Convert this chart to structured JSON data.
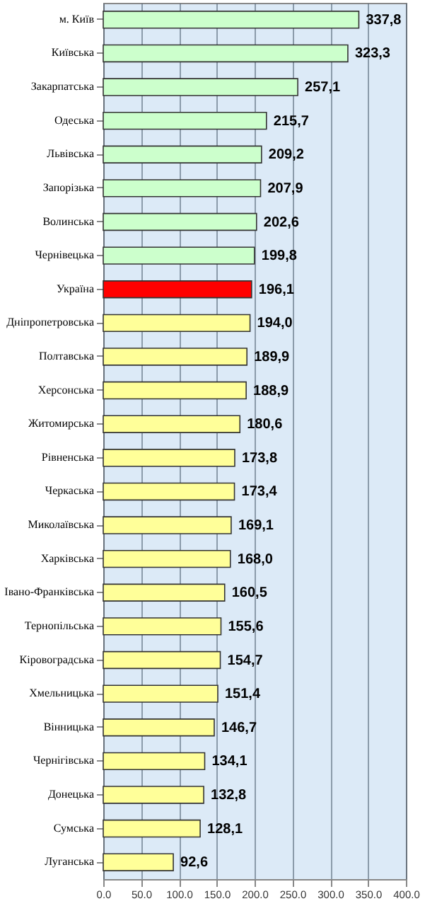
{
  "chart_data": {
    "type": "bar",
    "orientation": "horizontal",
    "categories": [
      "м. Київ",
      "Київська",
      "Закарпатська",
      "Одеська",
      "Львівська",
      "Запорізька",
      "Волинська",
      "Чернівецька",
      "Україна",
      "Дніпропетровська",
      "Полтавська",
      "Херсонська",
      "Житомирська",
      "Рівненська",
      "Черкаська",
      "Миколаївська",
      "Харківська",
      "Івано-Франківська",
      "Тернопільська",
      "Кіровоградська",
      "Хмельницька",
      "Вінницька",
      "Чернігівська",
      "Донецька",
      "Сумська",
      "Луганська"
    ],
    "values": [
      337.8,
      323.3,
      257.1,
      215.7,
      209.2,
      207.9,
      202.6,
      199.8,
      196.1,
      194.0,
      189.9,
      188.9,
      180.6,
      173.8,
      173.4,
      169.1,
      168.0,
      160.5,
      155.6,
      154.7,
      151.4,
      146.7,
      134.1,
      132.8,
      128.1,
      92.6
    ],
    "value_labels": [
      "337,8",
      "323,3",
      "257,1",
      "215,7",
      "209,2",
      "207,9",
      "202,6",
      "199,8",
      "196,1",
      "194,0",
      "189,9",
      "188,9",
      "180,6",
      "173,8",
      "173,4",
      "169,1",
      "168,0",
      "160,5",
      "155,6",
      "154,7",
      "151,4",
      "146,7",
      "134,1",
      "132,8",
      "128,1",
      "92,6"
    ],
    "colors": [
      "#ccffcc",
      "#ccffcc",
      "#ccffcc",
      "#ccffcc",
      "#ccffcc",
      "#ccffcc",
      "#ccffcc",
      "#ccffcc",
      "#ff0000",
      "#ffff99",
      "#ffff99",
      "#ffff99",
      "#ffff99",
      "#ffff99",
      "#ffff99",
      "#ffff99",
      "#ffff99",
      "#ffff99",
      "#ffff99",
      "#ffff99",
      "#ffff99",
      "#ffff99",
      "#ffff99",
      "#ffff99",
      "#ffff99",
      "#ffff99"
    ],
    "xlim": [
      0,
      400
    ],
    "xticks": [
      {
        "value": 0,
        "label": "0.0"
      },
      {
        "value": 50,
        "label": "50.0"
      },
      {
        "value": 100,
        "label": "100.0"
      },
      {
        "value": 150,
        "label": "150.0"
      },
      {
        "value": 200,
        "label": "200.0"
      },
      {
        "value": 250,
        "label": "250.0"
      },
      {
        "value": 300,
        "label": "300.0"
      },
      {
        "value": 350,
        "label": "350.0"
      },
      {
        "value": 400,
        "label": "400.0"
      }
    ],
    "grid": "x"
  }
}
